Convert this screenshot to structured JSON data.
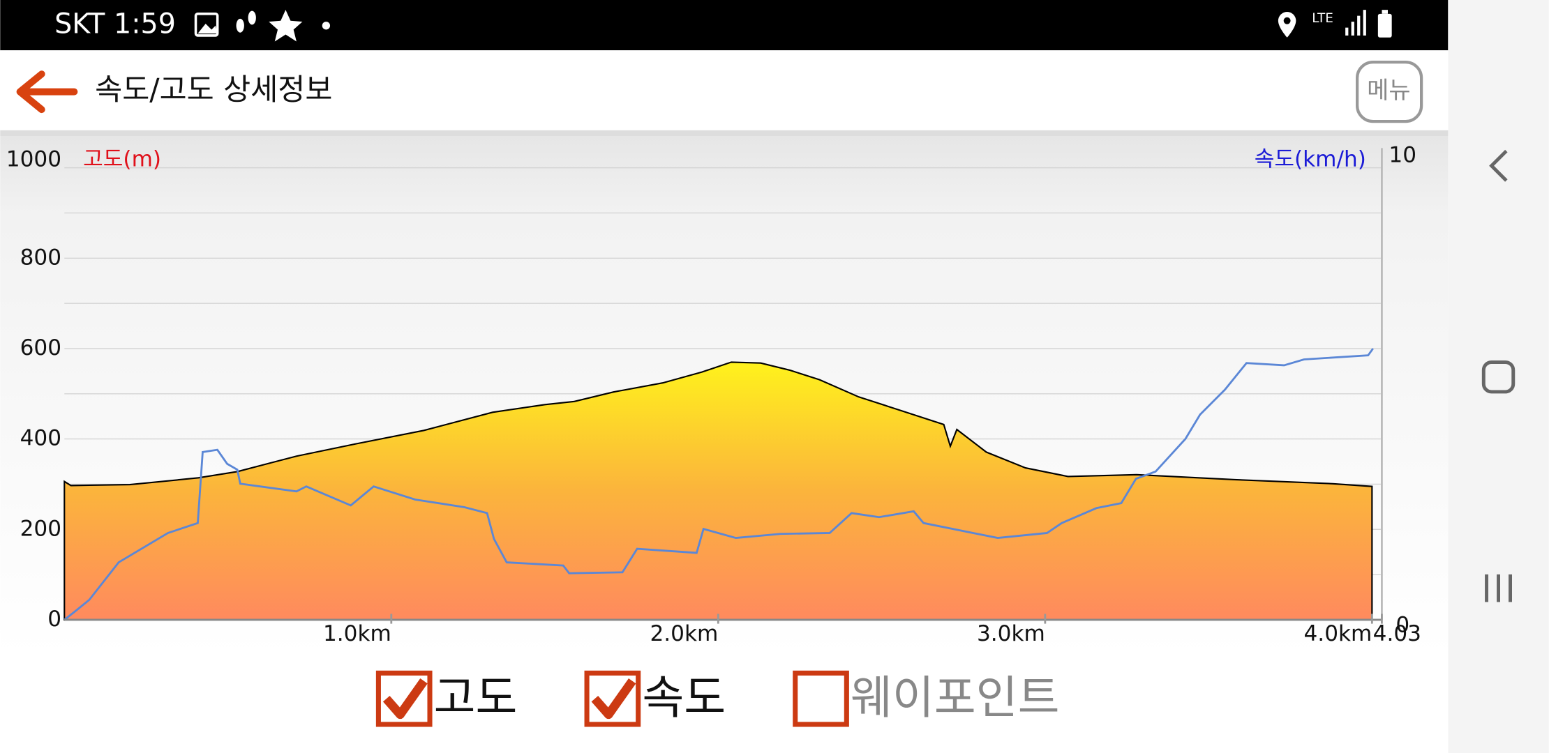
{
  "status_bar": {
    "carrier_time": "SKT 1:59",
    "network": "LTE"
  },
  "header": {
    "title": "속도/고도 상세정보",
    "menu_button": "메뉴"
  },
  "chart_data": {
    "type": "area",
    "y_label": "고도(m)",
    "y2_label": "속도(km/h)",
    "xlim": [
      0,
      4.03
    ],
    "xticks": [
      {
        "value": 1,
        "label": "1.0km"
      },
      {
        "value": 2,
        "label": "2.0km"
      },
      {
        "value": 3,
        "label": "3.0km"
      },
      {
        "value": 4,
        "label": "4.0km"
      },
      4.03
    ],
    "ylim": [
      0,
      1000
    ],
    "yticks": [
      0,
      200,
      400,
      600,
      800,
      1000
    ],
    "minor_yticks": [
      100,
      300,
      500,
      700,
      900
    ],
    "y2lim": [
      0,
      10
    ],
    "y2ticks": [
      0,
      10
    ],
    "grid": true,
    "series": [
      {
        "name": "고도",
        "color": "#000000",
        "checked": true,
        "x": [
          0,
          0.02,
          0.2,
          0.41,
          0.53,
          0.71,
          0.89,
          1.1,
          1.31,
          1.47,
          1.56,
          1.68,
          1.83,
          1.95,
          2.04,
          2.13,
          2.22,
          2.31,
          2.43,
          2.55,
          2.69,
          2.71,
          2.73,
          2.82,
          2.94,
          3.07,
          3.28,
          3.58,
          3.88,
          4.0
        ],
        "values": [
          306,
          297,
          299,
          314,
          328,
          362,
          389,
          419,
          459,
          476,
          483,
          504,
          524,
          548,
          570,
          568,
          552,
          531,
          493,
          465,
          432,
          384,
          421,
          371,
          336,
          317,
          321,
          310,
          301,
          295
        ]
      },
      {
        "name": "속도",
        "color": "#5b87d6",
        "axis": "y2",
        "checked": true,
        "x": [
          0,
          0.03,
          0.076,
          0.166,
          0.317,
          0.408,
          0.423,
          0.468,
          0.498,
          0.529,
          0.538,
          0.71,
          0.74,
          0.876,
          0.946,
          1.073,
          1.224,
          1.293,
          1.314,
          1.353,
          1.526,
          1.544,
          1.707,
          1.752,
          1.934,
          1.955,
          2.054,
          2.19,
          2.341,
          2.408,
          2.492,
          2.598,
          2.628,
          2.855,
          3.006,
          3.051,
          3.157,
          3.233,
          3.278,
          3.338,
          3.429,
          3.474,
          3.55,
          3.616,
          3.731,
          3.792,
          3.988,
          4.003
        ],
        "values": [
          0,
          0.17,
          0.44,
          1.27,
          1.92,
          2.14,
          3.71,
          3.76,
          3.45,
          3.32,
          3.01,
          2.84,
          2.95,
          2.53,
          2.95,
          2.66,
          2.49,
          2.36,
          1.79,
          1.27,
          1.2,
          1.03,
          1.05,
          1.57,
          1.48,
          2.01,
          1.81,
          1.9,
          1.92,
          2.36,
          2.27,
          2.4,
          2.14,
          1.81,
          1.92,
          2.14,
          2.47,
          2.58,
          3.12,
          3.28,
          4.0,
          4.54,
          5.09,
          5.68,
          5.63,
          5.76,
          5.85,
          6.0
        ]
      }
    ]
  },
  "waypoint_option": {
    "label": "웨이포인트",
    "checked": false
  }
}
